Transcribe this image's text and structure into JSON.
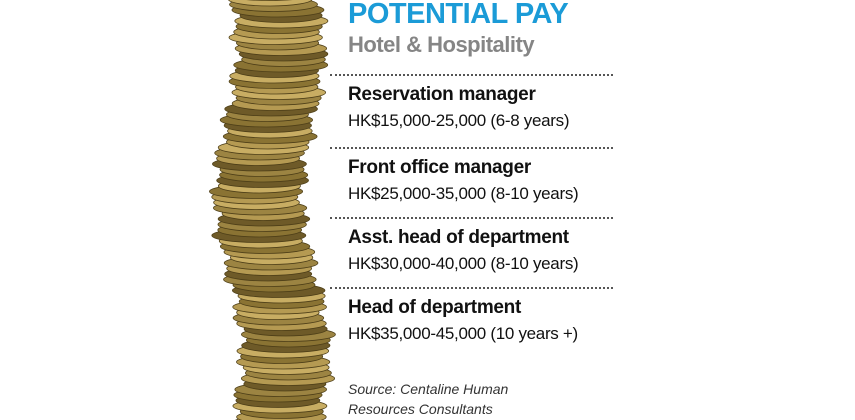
{
  "header": {
    "title": "POTENTIAL PAY",
    "subtitle": "Hotel & Hospitality"
  },
  "items": [
    {
      "role": "Reservation manager",
      "pay": "HK$15,000-25,000 (6-8 years)"
    },
    {
      "role": "Front office manager",
      "pay": "HK$25,000-35,000 (8-10 years)"
    },
    {
      "role": "Asst. head of department",
      "pay": "HK$30,000-40,000 (8-10 years)"
    },
    {
      "role": "Head of department",
      "pay": "HK$35,000-45,000 (10 years +)"
    }
  ],
  "source": [
    "Source: Centaline Human",
    "Resources Consultants"
  ]
}
